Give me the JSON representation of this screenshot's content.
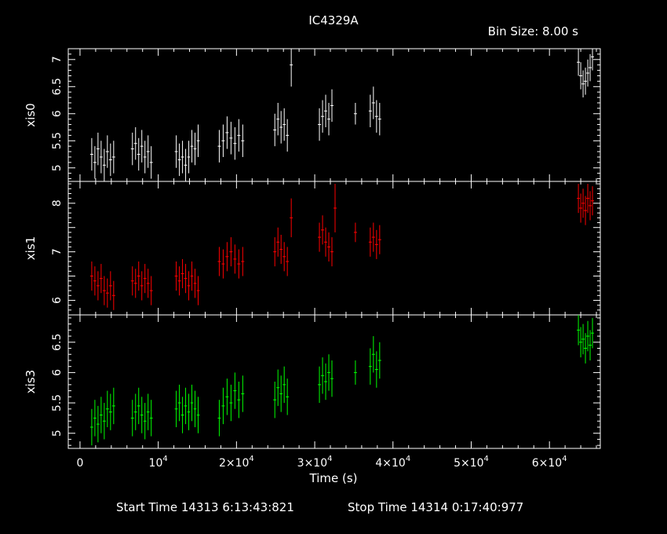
{
  "title": "IC4329A",
  "bin_size_label": "Bin Size: 8.00 s",
  "footer": {
    "start_label": "Start Time 14313  6:13:43:821",
    "stop_label": "Stop Time 14314  0:17:40:977"
  },
  "colors": {
    "xis0": "#ffffff",
    "xis1": "#ff0000",
    "xis3": "#00ff00",
    "axes": "#ffffff",
    "background": "#000000"
  },
  "chart_data": {
    "type": "scatter",
    "title": "IC4329A",
    "xlabel": "Time (s)",
    "xlim": [
      -1500,
      66500
    ],
    "x_ticks": [
      {
        "value": 0,
        "mant": "0",
        "exp": ""
      },
      {
        "value": 10000,
        "mant": "10",
        "exp": "4"
      },
      {
        "value": 20000,
        "mant": "2×10",
        "exp": "4"
      },
      {
        "value": 30000,
        "mant": "3×10",
        "exp": "4"
      },
      {
        "value": 40000,
        "mant": "4×10",
        "exp": "4"
      },
      {
        "value": 50000,
        "mant": "5×10",
        "exp": "4"
      },
      {
        "value": 60000,
        "mant": "6×10",
        "exp": "4"
      }
    ],
    "panels": [
      {
        "name": "xis0",
        "ylabel": "xis0",
        "ylim": [
          4.75,
          7.2
        ],
        "yticks": [
          5,
          5.5,
          6,
          6.5,
          7
        ],
        "ytick_labels": [
          "5",
          "5.5",
          "6",
          "6.5",
          "7"
        ],
        "segments": [
          {
            "x": [
              1500,
              1900,
              2300,
              2700,
              3100,
              3500,
              3900,
              4300
            ],
            "y": [
              5.25,
              5.1,
              5.35,
              5.2,
              5.05,
              5.3,
              5.15,
              5.2
            ],
            "err": [
              0.3,
              0.3,
              0.3,
              0.3,
              0.3,
              0.3,
              0.3,
              0.3
            ]
          },
          {
            "x": [
              6700,
              7100,
              7500,
              7900,
              8300,
              8700,
              9100
            ],
            "y": [
              5.35,
              5.45,
              5.25,
              5.4,
              5.2,
              5.3,
              5.1
            ],
            "err": [
              0.3,
              0.3,
              0.3,
              0.3,
              0.3,
              0.3,
              0.3
            ]
          },
          {
            "x": [
              12300,
              12700,
              13100,
              13500,
              13900,
              14300,
              14700,
              15100
            ],
            "y": [
              5.3,
              5.15,
              5.2,
              5.05,
              5.2,
              5.4,
              5.35,
              5.5
            ],
            "err": [
              0.3,
              0.3,
              0.3,
              0.3,
              0.3,
              0.3,
              0.3,
              0.3
            ]
          },
          {
            "x": [
              17800,
              18300,
              18800,
              19300,
              19800,
              20300,
              20800
            ],
            "y": [
              5.4,
              5.5,
              5.65,
              5.55,
              5.45,
              5.6,
              5.5
            ],
            "err": [
              0.3,
              0.3,
              0.3,
              0.3,
              0.3,
              0.3,
              0.3
            ]
          },
          {
            "x": [
              24900,
              25300,
              25700,
              26100,
              26500
            ],
            "y": [
              5.7,
              5.9,
              5.75,
              5.8,
              5.6
            ],
            "err": [
              0.3,
              0.3,
              0.3,
              0.3,
              0.3
            ]
          },
          {
            "x": [
              27000
            ],
            "y": [
              6.9
            ],
            "err": [
              0.4
            ]
          },
          {
            "x": [
              30600,
              31000,
              31400,
              31800,
              32200
            ],
            "y": [
              5.8,
              5.95,
              6.05,
              5.9,
              6.15
            ],
            "err": [
              0.3,
              0.3,
              0.3,
              0.3,
              0.3
            ]
          },
          {
            "x": [
              35200
            ],
            "y": [
              6.0
            ],
            "err": [
              0.2
            ]
          },
          {
            "x": [
              37100,
              37500,
              37900,
              38300
            ],
            "y": [
              6.05,
              6.2,
              5.95,
              5.9
            ],
            "err": [
              0.3,
              0.3,
              0.3,
              0.3
            ]
          },
          {
            "x": [
              63700,
              64000,
              64300,
              64600,
              64900,
              65200,
              65500
            ],
            "y": [
              6.95,
              6.7,
              6.55,
              6.6,
              6.75,
              6.85,
              7.05
            ],
            "err": [
              0.25,
              0.25,
              0.25,
              0.25,
              0.25,
              0.25,
              0.25
            ]
          }
        ]
      },
      {
        "name": "xis1",
        "ylabel": "xis1",
        "ylim": [
          5.7,
          8.45
        ],
        "yticks": [
          6,
          6.5,
          7,
          7.5,
          8
        ],
        "ytick_labels": [
          "6",
          "",
          "7",
          "",
          "8"
        ],
        "segments": [
          {
            "x": [
              1500,
              1900,
              2300,
              2700,
              3100,
              3500,
              3900,
              4300
            ],
            "y": [
              6.5,
              6.4,
              6.3,
              6.45,
              6.2,
              6.15,
              6.3,
              6.1
            ],
            "err": [
              0.3,
              0.3,
              0.3,
              0.3,
              0.3,
              0.3,
              0.3,
              0.3
            ]
          },
          {
            "x": [
              6700,
              7100,
              7500,
              7900,
              8300,
              8700,
              9100
            ],
            "y": [
              6.4,
              6.35,
              6.5,
              6.3,
              6.45,
              6.35,
              6.2
            ],
            "err": [
              0.3,
              0.3,
              0.3,
              0.3,
              0.3,
              0.3,
              0.3
            ]
          },
          {
            "x": [
              12300,
              12700,
              13100,
              13500,
              13900,
              14300,
              14700,
              15100
            ],
            "y": [
              6.5,
              6.4,
              6.55,
              6.45,
              6.3,
              6.5,
              6.35,
              6.2
            ],
            "err": [
              0.3,
              0.3,
              0.3,
              0.3,
              0.3,
              0.3,
              0.3,
              0.3
            ]
          },
          {
            "x": [
              17800,
              18300,
              18800,
              19300,
              19800,
              20300,
              20800
            ],
            "y": [
              6.8,
              6.75,
              6.9,
              7.0,
              6.85,
              6.75,
              6.8
            ],
            "err": [
              0.3,
              0.3,
              0.3,
              0.3,
              0.3,
              0.3,
              0.3
            ]
          },
          {
            "x": [
              24900,
              25300,
              25700,
              26100,
              26500
            ],
            "y": [
              7.0,
              7.2,
              7.05,
              6.9,
              6.8
            ],
            "err": [
              0.3,
              0.3,
              0.3,
              0.3,
              0.3
            ]
          },
          {
            "x": [
              27000
            ],
            "y": [
              7.7
            ],
            "err": [
              0.4
            ]
          },
          {
            "x": [
              30600,
              31000,
              31400,
              31800,
              32200
            ],
            "y": [
              7.3,
              7.45,
              7.2,
              7.1,
              7.0
            ],
            "err": [
              0.3,
              0.3,
              0.3,
              0.3,
              0.3
            ]
          },
          {
            "x": [
              32600
            ],
            "y": [
              7.9
            ],
            "err": [
              0.5
            ]
          },
          {
            "x": [
              35200
            ],
            "y": [
              7.4
            ],
            "err": [
              0.2
            ]
          },
          {
            "x": [
              37100,
              37500,
              37900,
              38300
            ],
            "y": [
              7.2,
              7.3,
              7.15,
              7.25
            ],
            "err": [
              0.3,
              0.3,
              0.3,
              0.3
            ]
          },
          {
            "x": [
              63700,
              64000,
              64300,
              64600,
              64900,
              65200,
              65500
            ],
            "y": [
              8.1,
              7.9,
              8.0,
              7.85,
              8.1,
              7.95,
              8.05
            ],
            "err": [
              0.3,
              0.3,
              0.3,
              0.3,
              0.3,
              0.3,
              0.3
            ]
          }
        ]
      },
      {
        "name": "xis3",
        "ylabel": "xis3",
        "ylim": [
          4.75,
          6.95
        ],
        "yticks": [
          5,
          5.5,
          6,
          6.5
        ],
        "ytick_labels": [
          "5",
          "5.5",
          "6",
          "6.5"
        ],
        "segments": [
          {
            "x": [
              1500,
              1900,
              2300,
              2700,
              3100,
              3500,
              3900,
              4300
            ],
            "y": [
              5.1,
              5.25,
              5.15,
              5.3,
              5.2,
              5.4,
              5.35,
              5.45
            ],
            "err": [
              0.3,
              0.3,
              0.3,
              0.3,
              0.3,
              0.3,
              0.3,
              0.3
            ]
          },
          {
            "x": [
              6700,
              7100,
              7500,
              7900,
              8300,
              8700,
              9100
            ],
            "y": [
              5.25,
              5.35,
              5.45,
              5.3,
              5.2,
              5.35,
              5.25
            ],
            "err": [
              0.3,
              0.3,
              0.3,
              0.3,
              0.3,
              0.3,
              0.3
            ]
          },
          {
            "x": [
              12300,
              12700,
              13100,
              13500,
              13900,
              14300,
              14700,
              15100
            ],
            "y": [
              5.4,
              5.5,
              5.3,
              5.45,
              5.35,
              5.5,
              5.4,
              5.3
            ],
            "err": [
              0.3,
              0.3,
              0.3,
              0.3,
              0.3,
              0.3,
              0.3,
              0.3
            ]
          },
          {
            "x": [
              17800,
              18300,
              18800,
              19300,
              19800,
              20300,
              20800
            ],
            "y": [
              5.25,
              5.45,
              5.6,
              5.5,
              5.7,
              5.55,
              5.65
            ],
            "err": [
              0.3,
              0.3,
              0.3,
              0.3,
              0.3,
              0.3,
              0.3
            ]
          },
          {
            "x": [
              24900,
              25300,
              25700,
              26100,
              26500
            ],
            "y": [
              5.55,
              5.75,
              5.65,
              5.8,
              5.6
            ],
            "err": [
              0.3,
              0.3,
              0.3,
              0.3,
              0.3
            ]
          },
          {
            "x": [
              30600,
              31000,
              31400,
              31800,
              32200
            ],
            "y": [
              5.8,
              5.95,
              5.85,
              6.0,
              5.9
            ],
            "err": [
              0.3,
              0.3,
              0.3,
              0.3,
              0.3
            ]
          },
          {
            "x": [
              35200
            ],
            "y": [
              6.0
            ],
            "err": [
              0.2
            ]
          },
          {
            "x": [
              37100,
              37500,
              37900,
              38300
            ],
            "y": [
              6.1,
              6.3,
              6.05,
              6.2
            ],
            "err": [
              0.3,
              0.3,
              0.3,
              0.3
            ]
          },
          {
            "x": [
              63700,
              64000,
              64300,
              64600,
              64900,
              65200,
              65500
            ],
            "y": [
              6.7,
              6.5,
              6.55,
              6.4,
              6.6,
              6.45,
              6.65
            ],
            "err": [
              0.25,
              0.25,
              0.25,
              0.25,
              0.25,
              0.25,
              0.25
            ]
          }
        ]
      }
    ]
  }
}
